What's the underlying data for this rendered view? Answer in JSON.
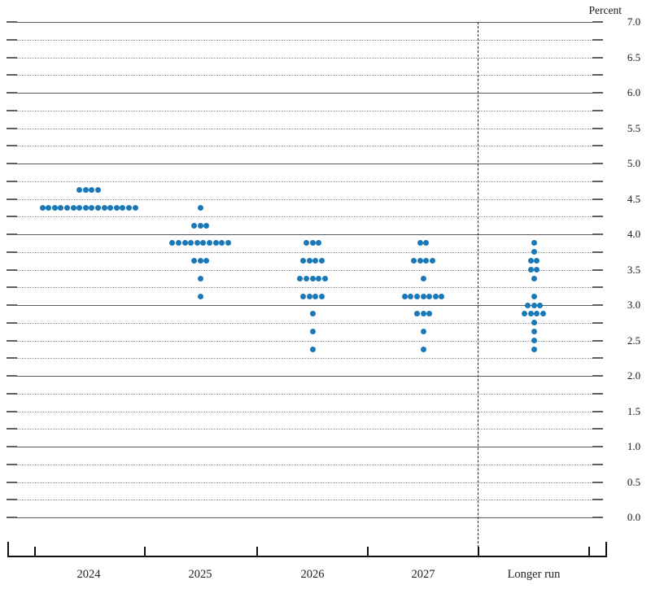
{
  "chart_data": {
    "type": "dot_plot",
    "unit_label": "Percent",
    "y_axis": {
      "min": 0.0,
      "max": 7.0,
      "grid_step": 0.25,
      "label_step": 0.5,
      "solid_line_step": 1.0,
      "tick_labels": [
        "7.0",
        "6.5",
        "6.0",
        "5.5",
        "5.0",
        "4.5",
        "4.0",
        "3.5",
        "3.0",
        "2.5",
        "2.0",
        "1.5",
        "1.0",
        "0.5",
        "0.0"
      ],
      "grid": true
    },
    "categories": [
      "2024",
      "2025",
      "2026",
      "2027",
      "Longer run"
    ],
    "separator_before_category": "Longer run",
    "series": [
      {
        "category": "2024",
        "dots": [
          {
            "rate": 4.625,
            "count": 4
          },
          {
            "rate": 4.375,
            "count": 16
          }
        ]
      },
      {
        "category": "2025",
        "dots": [
          {
            "rate": 4.375,
            "count": 1
          },
          {
            "rate": 4.125,
            "count": 3
          },
          {
            "rate": 3.875,
            "count": 10
          },
          {
            "rate": 3.625,
            "count": 3
          },
          {
            "rate": 3.375,
            "count": 1
          },
          {
            "rate": 3.125,
            "count": 1
          }
        ]
      },
      {
        "category": "2026",
        "dots": [
          {
            "rate": 3.875,
            "count": 3
          },
          {
            "rate": 3.625,
            "count": 4
          },
          {
            "rate": 3.375,
            "count": 5
          },
          {
            "rate": 3.125,
            "count": 4
          },
          {
            "rate": 2.875,
            "count": 1
          },
          {
            "rate": 2.625,
            "count": 1
          },
          {
            "rate": 2.375,
            "count": 1
          }
        ]
      },
      {
        "category": "2027",
        "dots": [
          {
            "rate": 3.875,
            "count": 2
          },
          {
            "rate": 3.625,
            "count": 4
          },
          {
            "rate": 3.375,
            "count": 1
          },
          {
            "rate": 3.125,
            "count": 7
          },
          {
            "rate": 2.875,
            "count": 3
          },
          {
            "rate": 2.625,
            "count": 1
          },
          {
            "rate": 2.375,
            "count": 1
          }
        ]
      },
      {
        "category": "Longer run",
        "dots": [
          {
            "rate": 3.875,
            "count": 1
          },
          {
            "rate": 3.75,
            "count": 1
          },
          {
            "rate": 3.625,
            "count": 2
          },
          {
            "rate": 3.5,
            "count": 2
          },
          {
            "rate": 3.375,
            "count": 1
          },
          {
            "rate": 3.125,
            "count": 1
          },
          {
            "rate": 3.0,
            "count": 3
          },
          {
            "rate": 2.875,
            "count": 4
          },
          {
            "rate": 2.75,
            "count": 1
          },
          {
            "rate": 2.625,
            "count": 1
          },
          {
            "rate": 2.5,
            "count": 1
          },
          {
            "rate": 2.375,
            "count": 1
          }
        ]
      }
    ],
    "colors": {
      "dot": "#1878b8",
      "grid_dotted": "#8f8f8f",
      "grid_solid": "#5a5a5a",
      "axis": "#111111",
      "text": "#1a1a1a"
    }
  }
}
